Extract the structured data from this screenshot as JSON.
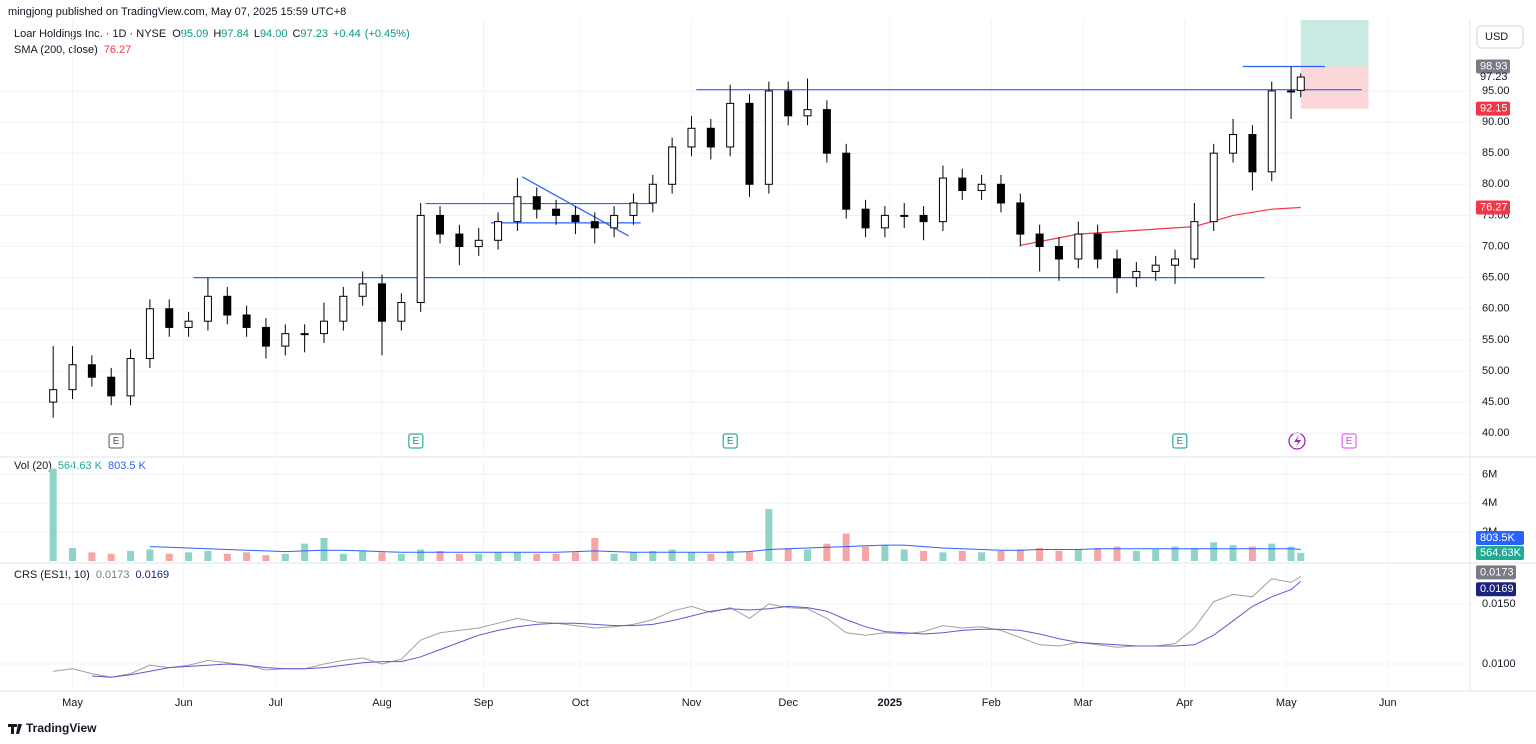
{
  "header": {
    "publisher": "mingjong published on TradingView.com, May 07, 2025 15:59 UTC+8"
  },
  "footer": {
    "brand": "TradingView"
  },
  "chart_data": [
    {
      "type": "candlestick",
      "title": "Loar Holdings Inc. · 1D · NYSE",
      "currency": "USD",
      "ohlc_labels": [
        "O",
        "H",
        "L",
        "C"
      ],
      "legend": {
        "open": 95.09,
        "high": 97.84,
        "low": {
          "value": 94,
          "label": "94.00"
        },
        "close": 97.23
      },
      "change": {
        "value": 0.44,
        "label": "+0.44"
      },
      "change_pct": {
        "value": 0.45,
        "label": "(+0.45%)"
      },
      "x": [
        0,
        4,
        8,
        12,
        16,
        20,
        24,
        28,
        32,
        36,
        40,
        44,
        48,
        52,
        56,
        60,
        64,
        68,
        72,
        76,
        80,
        84,
        88,
        92,
        96,
        100,
        104,
        108,
        112,
        116,
        120,
        124,
        128,
        132,
        136,
        140,
        144,
        148,
        152,
        156,
        160,
        164,
        168,
        172,
        176,
        180,
        184,
        188,
        192,
        196,
        200,
        204,
        208,
        212,
        216,
        220,
        224,
        228,
        232,
        236,
        240,
        244,
        248,
        252,
        256,
        258
      ],
      "open": [
        45,
        47,
        51,
        49,
        46,
        52,
        60,
        57,
        58,
        62,
        59,
        57,
        54,
        56,
        56,
        58,
        62,
        64,
        58,
        61,
        75,
        72,
        70,
        71,
        74,
        78,
        76,
        75,
        74,
        73,
        75,
        77,
        80,
        86,
        89,
        86,
        93,
        80,
        95,
        91,
        92,
        85,
        76,
        73,
        75,
        75,
        74,
        81,
        79,
        80,
        77,
        72,
        70,
        68,
        72,
        68,
        65,
        66,
        67,
        68,
        74,
        85,
        88,
        82,
        95,
        95.09
      ],
      "high": [
        54,
        54,
        52.5,
        50.5,
        53.5,
        61.5,
        61.5,
        59.5,
        65,
        63.5,
        60.5,
        58.5,
        57.5,
        57.5,
        61,
        63.5,
        66,
        65.5,
        62.5,
        77,
        76.5,
        73.5,
        73,
        75.5,
        81,
        79.5,
        77.5,
        76.5,
        75.5,
        76.5,
        78.5,
        81.5,
        87.5,
        91,
        90.5,
        96,
        94.5,
        96.5,
        96.5,
        97,
        93.5,
        86.5,
        77.5,
        76.5,
        77,
        76.5,
        83,
        82.5,
        81.5,
        81.5,
        78.5,
        73.5,
        71.5,
        74,
        73.5,
        69.5,
        67.5,
        68.5,
        69.5,
        77,
        86.5,
        90.5,
        89.5,
        96.5,
        98.9,
        97.84
      ],
      "low": [
        42.5,
        45.5,
        47.5,
        44.5,
        44.5,
        50.5,
        55.5,
        55.5,
        56.5,
        57.5,
        55.5,
        52,
        52.5,
        53,
        54.5,
        56.5,
        60.5,
        52.5,
        56.5,
        59.5,
        70.5,
        67,
        68.5,
        69.5,
        72.5,
        74.5,
        73.5,
        72,
        70.5,
        71.5,
        73.5,
        75.5,
        78.5,
        84.5,
        84,
        84.5,
        78,
        78.5,
        89.5,
        89.5,
        83.5,
        74.5,
        71.5,
        71.5,
        73,
        71,
        72.5,
        77.5,
        77.5,
        75.5,
        70,
        66,
        64.5,
        66.5,
        66.5,
        62.5,
        63.5,
        64.5,
        64,
        66.5,
        72.5,
        83.5,
        79,
        80.5,
        90.5,
        94
      ],
      "close": [
        47,
        51,
        49,
        46,
        52,
        60,
        57,
        58,
        62,
        59,
        57,
        54,
        56,
        56,
        58,
        62,
        64,
        58,
        61,
        75,
        72,
        70,
        71,
        74,
        78,
        76,
        75,
        74,
        73,
        75,
        77,
        80,
        86,
        89,
        86,
        93,
        80,
        95,
        91,
        92,
        85,
        76,
        73,
        75,
        75,
        74,
        81,
        79,
        80,
        77,
        72,
        70,
        68,
        72,
        68,
        65,
        66,
        67,
        68,
        74,
        85,
        88,
        82,
        95,
        95,
        97.23
      ],
      "up_color": "#ffffff",
      "down_color": "#000000",
      "wick_color": "#000000",
      "xlim": [
        -11,
        293
      ],
      "ylim": [
        36.5,
        106.4
      ],
      "yticks": [
        {
          "value": 40,
          "label": "40.00"
        },
        {
          "value": 45,
          "label": "45.00"
        },
        {
          "value": 50,
          "label": "50.00"
        },
        {
          "value": 55,
          "label": "55.00"
        },
        {
          "value": 60,
          "label": "60.00"
        },
        {
          "value": 65,
          "label": "65.00"
        },
        {
          "value": 70,
          "label": "70.00"
        },
        {
          "value": 75,
          "label": "75.00"
        },
        {
          "value": 80,
          "label": "80.00"
        },
        {
          "value": 85,
          "label": "85.00"
        },
        {
          "value": 90,
          "label": "90.00"
        },
        {
          "value": 95,
          "label": "95.00"
        }
      ],
      "grid": true,
      "overlay": {
        "name": "SMA (200, close)",
        "color": "#f23645",
        "x": [
          200,
          212,
          228,
          236,
          244,
          252,
          258
        ],
        "values": [
          70.2,
          72,
          72.8,
          73.2,
          75,
          76,
          76.27
        ]
      },
      "line_color": "#2962ff",
      "lines": [
        {
          "x": [
            29,
            250.5
          ],
          "y": [
            65,
            65
          ]
        },
        {
          "x": [
            133,
            270.6
          ],
          "y": [
            95.2,
            95.2
          ]
        },
        {
          "x": [
            77,
            124
          ],
          "y": [
            76.9,
            76.9
          ]
        },
        {
          "x": [
            90.5,
            121.5
          ],
          "y": [
            73.8,
            73.8
          ]
        },
        {
          "x": [
            97,
            119
          ],
          "y": [
            81.2,
            71.7
          ]
        },
        {
          "x": [
            246,
            263
          ],
          "y": [
            98.93,
            98.93
          ]
        }
      ],
      "position": {
        "x": [
          258,
          272
        ],
        "target": 106.4,
        "entry": 98.93,
        "stop": 92.15,
        "profit_color": "rgba(8,153,129,0.22)",
        "loss_color": "rgba(242,54,69,0.2)"
      },
      "events": [
        {
          "x": 13,
          "label": "E",
          "color": "#555555"
        },
        {
          "x": 75,
          "label": "E",
          "color": "#089981"
        },
        {
          "x": 140,
          "label": "E",
          "color": "#089981"
        },
        {
          "x": 233,
          "label": "E",
          "color": "#089981"
        },
        {
          "x": 268,
          "label": "E",
          "color": "#e040fb"
        }
      ]
    },
    {
      "type": "bar",
      "title": "Vol (20)",
      "x": [
        0,
        4,
        8,
        12,
        16,
        20,
        24,
        28,
        32,
        36,
        40,
        44,
        48,
        52,
        56,
        60,
        64,
        68,
        72,
        76,
        80,
        84,
        88,
        92,
        96,
        100,
        104,
        108,
        112,
        116,
        120,
        124,
        128,
        132,
        136,
        140,
        144,
        148,
        152,
        156,
        160,
        164,
        168,
        172,
        176,
        180,
        184,
        188,
        192,
        196,
        200,
        204,
        208,
        212,
        216,
        220,
        224,
        228,
        232,
        236,
        240,
        244,
        248,
        252,
        256,
        258
      ],
      "values": [
        6400000,
        900000,
        600000,
        500000,
        700000,
        800000,
        500000,
        600000,
        700000,
        500000,
        600000,
        400000,
        500000,
        1200000,
        1600000,
        500000,
        700000,
        600000,
        500000,
        800000,
        700000,
        500000,
        500000,
        600000,
        600000,
        500000,
        500000,
        600000,
        1600000,
        500000,
        600000,
        700000,
        800000,
        600000,
        500000,
        700000,
        600000,
        3600000,
        900000,
        800000,
        1200000,
        1900000,
        1000000,
        1100000,
        800000,
        700000,
        600000,
        700000,
        600000,
        700000,
        800000,
        900000,
        700000,
        800000,
        900000,
        1000000,
        700000,
        800000,
        1000000,
        900000,
        1300000,
        1100000,
        1000000,
        1200000,
        1000000,
        564630
      ],
      "current": {
        "value": 564630,
        "label": "564.63 K",
        "axis_label": "564.63K"
      },
      "up_color": "#8fd3c9",
      "down_color": "#f5a5a3",
      "xlim": [
        -11,
        293
      ],
      "ylim": [
        0,
        6860000
      ],
      "yticks": [
        {
          "value": 2000000,
          "label": "2M"
        },
        {
          "value": 4000000,
          "label": "4M"
        },
        {
          "value": 6000000,
          "label": "6M"
        }
      ],
      "ma": {
        "color": "#2962ff",
        "values": [
          null,
          null,
          null,
          null,
          null,
          1000000,
          950000,
          900000,
          850000,
          800000,
          750000,
          700000,
          650000,
          700000,
          750000,
          750000,
          700000,
          650000,
          600000,
          600000,
          600000,
          600000,
          600000,
          600000,
          600000,
          600000,
          600000,
          650000,
          700000,
          650000,
          600000,
          600000,
          600000,
          600000,
          600000,
          600000,
          650000,
          800000,
          850000,
          900000,
          950000,
          1000000,
          1050000,
          1100000,
          1100000,
          1000000,
          900000,
          850000,
          800000,
          750000,
          750000,
          800000,
          800000,
          800000,
          850000,
          850000,
          850000,
          850000,
          850000,
          850000,
          850000,
          850000,
          850000,
          850000,
          850000,
          803500
        ],
        "current": {
          "value": 803500,
          "label": "803.5 K",
          "axis_label": "803.5K"
        }
      }
    },
    {
      "type": "line",
      "title": "CRS (ES1!, 10)",
      "x": [
        0,
        4,
        8,
        12,
        16,
        20,
        24,
        28,
        32,
        36,
        40,
        44,
        48,
        52,
        56,
        60,
        64,
        68,
        72,
        76,
        80,
        84,
        88,
        92,
        96,
        100,
        104,
        108,
        112,
        116,
        120,
        124,
        128,
        132,
        136,
        140,
        144,
        148,
        152,
        156,
        160,
        164,
        168,
        172,
        176,
        180,
        184,
        188,
        192,
        196,
        200,
        204,
        208,
        212,
        216,
        220,
        224,
        228,
        232,
        236,
        240,
        244,
        248,
        252,
        256,
        258
      ],
      "series": [
        {
          "color": "#a0a0a0",
          "tag_color": "#787b86",
          "values": [
            0.0094,
            0.0096,
            0.0092,
            0.0089,
            0.0092,
            0.0099,
            0.0097,
            0.0099,
            0.0103,
            0.0101,
            0.0099,
            0.0095,
            0.0096,
            0.0096,
            0.01,
            0.0103,
            0.0105,
            0.01,
            0.0104,
            0.012,
            0.0126,
            0.0128,
            0.013,
            0.0134,
            0.0138,
            0.0135,
            0.0134,
            0.0132,
            0.013,
            0.0131,
            0.0133,
            0.0137,
            0.0144,
            0.0148,
            0.0143,
            0.0147,
            0.0138,
            0.015,
            0.0147,
            0.0146,
            0.0138,
            0.0126,
            0.0124,
            0.0126,
            0.0125,
            0.0127,
            0.0132,
            0.013,
            0.0131,
            0.0128,
            0.0122,
            0.0116,
            0.0115,
            0.0118,
            0.0116,
            0.0114,
            0.0115,
            0.0115,
            0.0117,
            0.013,
            0.0152,
            0.0158,
            0.0156,
            0.0171,
            0.0168,
            0.0173
          ]
        },
        {
          "color": "#5b5bd6",
          "tag_color": "#1a237e",
          "values": [
            null,
            null,
            0.009,
            0.0089,
            0.0091,
            0.0094,
            0.0097,
            0.0098,
            0.0099,
            0.01,
            0.0099,
            0.0097,
            0.0096,
            0.0096,
            0.0097,
            0.0099,
            0.0101,
            0.0102,
            0.0102,
            0.0106,
            0.0112,
            0.0118,
            0.0124,
            0.0128,
            0.0131,
            0.0133,
            0.0134,
            0.0134,
            0.0133,
            0.0132,
            0.0132,
            0.0133,
            0.0136,
            0.014,
            0.0144,
            0.0146,
            0.0145,
            0.0146,
            0.0148,
            0.0147,
            0.0144,
            0.0137,
            0.0131,
            0.0127,
            0.0126,
            0.0125,
            0.0126,
            0.0128,
            0.0129,
            0.0129,
            0.0128,
            0.0125,
            0.0121,
            0.0118,
            0.0117,
            0.0116,
            0.0115,
            0.0115,
            0.0115,
            0.0116,
            0.0124,
            0.0136,
            0.0148,
            0.0156,
            0.0162,
            0.0169
          ]
        }
      ],
      "xlim": [
        -11,
        293
      ],
      "ylim": [
        0.00783,
        0.01825
      ],
      "yticks": [
        {
          "value": 0.01,
          "label": "0.0100"
        },
        {
          "value": 0.015,
          "label": "0.0150"
        }
      ],
      "xticks": [
        {
          "value": 4,
          "label": "May"
        },
        {
          "value": 27,
          "label": "Jun"
        },
        {
          "value": 46,
          "label": "Jul"
        },
        {
          "value": 68,
          "label": "Aug"
        },
        {
          "value": 89,
          "label": "Sep"
        },
        {
          "value": 109,
          "label": "Oct"
        },
        {
          "value": 132,
          "label": "Nov"
        },
        {
          "value": 152,
          "label": "Dec"
        },
        {
          "value": 173,
          "label": "2025"
        },
        {
          "value": 194,
          "label": "Feb"
        },
        {
          "value": 213,
          "label": "Mar"
        },
        {
          "value": 234,
          "label": "Apr"
        },
        {
          "value": 255,
          "label": "May"
        },
        {
          "value": 276,
          "label": "Jun"
        }
      ]
    }
  ]
}
